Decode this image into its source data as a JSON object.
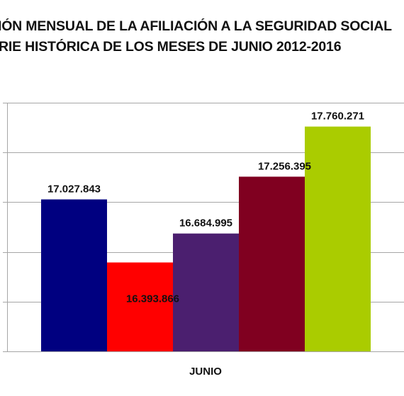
{
  "chart_data": {
    "type": "bar",
    "title_lines": [
      "IÓN MENSUAL DE LA  AFILIACIÓN A LA SEGURIDAD SOCIAL",
      "RIE HISTÓRICA DE LOS MESES DE JUNIO 2012-2016"
    ],
    "categories": [
      "JUNIO"
    ],
    "series": [
      {
        "values": [
          17027843
        ],
        "label": "17.027.843",
        "color": "#000080"
      },
      {
        "values": [
          16393866
        ],
        "label": "16.393.866",
        "color": "#ff0000"
      },
      {
        "values": [
          16684995
        ],
        "label": "16.684.995",
        "color": "#4b1f6f"
      },
      {
        "values": [
          17256395
        ],
        "label": "17.256.395",
        "color": "#800020"
      },
      {
        "values": [
          17760271
        ],
        "label": "17.760.271",
        "color": "#aacc00"
      }
    ],
    "ylim": [
      15500000,
      18000000
    ],
    "y_gridline_step": 500000,
    "grid": true,
    "legend": "none",
    "xlabel": "",
    "ylabel": ""
  }
}
